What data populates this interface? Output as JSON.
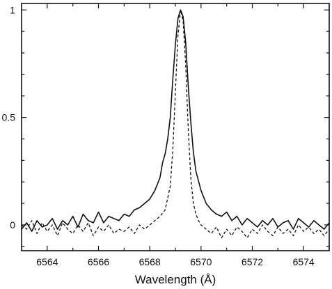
{
  "chart_data": {
    "type": "line",
    "title": "",
    "xlabel": "Wavelength (Å)",
    "ylabel": "",
    "xlim": [
      6563.0,
      6575.0
    ],
    "ylim": [
      -0.12,
      1.03
    ],
    "x_ticks": [
      6564,
      6566,
      6568,
      6570,
      6572,
      6574
    ],
    "x_tick_labels": [
      "6564",
      "6566",
      "6568",
      "6570",
      "6572",
      "6574"
    ],
    "y_ticks": [
      0,
      0.5,
      1
    ],
    "y_tick_labels": [
      "0",
      "0.5",
      "1"
    ],
    "grid": false,
    "legend": "none",
    "series": [
      {
        "style": "solid",
        "color": "#111111",
        "x": [
          6563.0,
          6563.2,
          6563.4,
          6563.6,
          6563.8,
          6564.0,
          6564.2,
          6564.4,
          6564.6,
          6564.8,
          6565.0,
          6565.2,
          6565.4,
          6565.6,
          6565.8,
          6566.0,
          6566.2,
          6566.4,
          6566.6,
          6566.8,
          6567.0,
          6567.2,
          6567.4,
          6567.6,
          6567.8,
          6568.0,
          6568.2,
          6568.4,
          6568.5,
          6568.6,
          6568.7,
          6568.8,
          6568.9,
          6569.0,
          6569.1,
          6569.2,
          6569.3,
          6569.4,
          6569.5,
          6569.6,
          6569.7,
          6569.8,
          6570.0,
          6570.2,
          6570.4,
          6570.6,
          6570.8,
          6571.0,
          6571.2,
          6571.4,
          6571.6,
          6571.8,
          6572.0,
          6572.2,
          6572.4,
          6572.6,
          6572.8,
          6573.0,
          6573.2,
          6573.4,
          6573.6,
          6573.8,
          6574.0,
          6574.2,
          6574.4,
          6574.6,
          6574.8,
          6575.0
        ],
        "values": [
          -0.02,
          0.01,
          -0.03,
          0.02,
          -0.01,
          0.0,
          0.03,
          -0.02,
          0.02,
          0.0,
          0.04,
          -0.01,
          0.05,
          0.02,
          0.01,
          0.06,
          0.01,
          0.04,
          0.03,
          0.02,
          0.05,
          0.04,
          0.07,
          0.08,
          0.1,
          0.12,
          0.16,
          0.22,
          0.29,
          0.33,
          0.4,
          0.5,
          0.68,
          0.84,
          0.96,
          1.0,
          0.97,
          0.85,
          0.65,
          0.48,
          0.34,
          0.25,
          0.16,
          0.1,
          0.07,
          0.05,
          0.04,
          0.06,
          0.02,
          0.04,
          0.0,
          0.03,
          0.01,
          -0.01,
          0.02,
          0.0,
          0.03,
          -0.01,
          0.01,
          0.02,
          -0.02,
          0.03,
          0.01,
          -0.01,
          0.02,
          0.0,
          -0.02,
          0.01
        ]
      },
      {
        "style": "dashed",
        "color": "#111111",
        "x": [
          6563.0,
          6563.2,
          6563.4,
          6563.6,
          6563.8,
          6564.0,
          6564.2,
          6564.4,
          6564.6,
          6564.8,
          6565.0,
          6565.2,
          6565.4,
          6565.6,
          6565.8,
          6566.0,
          6566.2,
          6566.4,
          6566.6,
          6566.8,
          6567.0,
          6567.2,
          6567.4,
          6567.6,
          6567.8,
          6568.0,
          6568.2,
          6568.4,
          6568.6,
          6568.8,
          6568.9,
          6569.0,
          6569.1,
          6569.2,
          6569.3,
          6569.4,
          6569.5,
          6569.6,
          6569.7,
          6569.8,
          6569.9,
          6570.0,
          6570.2,
          6570.4,
          6570.6,
          6570.8,
          6571.0,
          6571.2,
          6571.4,
          6571.6,
          6571.8,
          6572.0,
          6572.2,
          6572.4,
          6572.6,
          6572.8,
          6573.0,
          6573.2,
          6573.4,
          6573.6,
          6573.8,
          6574.0,
          6574.2,
          6574.4,
          6574.6,
          6574.8,
          6575.0
        ],
        "values": [
          0.0,
          -0.02,
          0.02,
          -0.04,
          0.01,
          -0.03,
          0.0,
          -0.05,
          0.01,
          -0.02,
          -0.04,
          0.0,
          -0.03,
          0.01,
          -0.05,
          -0.01,
          -0.03,
          0.0,
          -0.04,
          -0.02,
          -0.03,
          -0.01,
          -0.04,
          0.0,
          -0.02,
          0.0,
          0.02,
          0.04,
          0.07,
          0.18,
          0.35,
          0.62,
          0.88,
          1.0,
          0.95,
          0.75,
          0.45,
          0.22,
          0.1,
          0.05,
          0.02,
          0.0,
          -0.02,
          -0.04,
          -0.01,
          -0.06,
          -0.02,
          -0.05,
          -0.01,
          -0.03,
          -0.06,
          -0.02,
          -0.04,
          0.0,
          -0.03,
          -0.05,
          -0.01,
          -0.04,
          -0.02,
          -0.05,
          0.0,
          -0.03,
          -0.01,
          -0.04,
          -0.02,
          -0.05,
          -0.02
        ]
      }
    ]
  }
}
